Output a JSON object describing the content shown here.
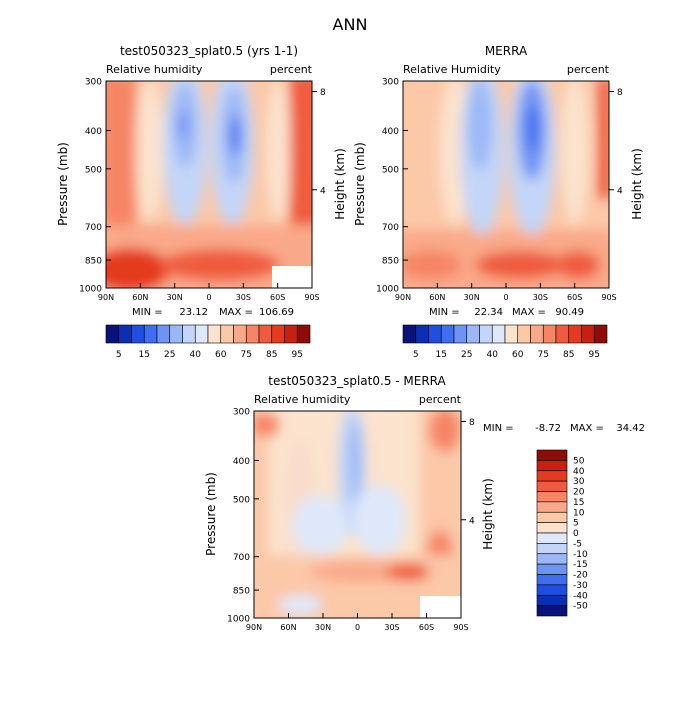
{
  "main_title": "ANN",
  "chart_data": [
    {
      "type": "heatmap",
      "id": "p1",
      "title": "test050323_splat0.5 (yrs 1-1)",
      "left_label": "Relative humidity",
      "right_label": "percent",
      "ylabel": "Pressure (mb)",
      "ylabel_right": "Height (km)",
      "y_ticks": [
        "300",
        "400",
        "500",
        "700",
        "850",
        "1000"
      ],
      "y_tick_values": [
        300,
        400,
        500,
        700,
        850,
        1000
      ],
      "height_ticks": [
        "8",
        "4"
      ],
      "height_tick_values": [
        8,
        4
      ],
      "x_ticks": [
        "90N",
        "60N",
        "30N",
        "0",
        "30S",
        "60S",
        "90S"
      ],
      "x_tick_values": [
        90,
        60,
        30,
        0,
        -30,
        -60,
        -90
      ],
      "min_label": "MIN =",
      "min_value": "23.12",
      "max_label": "MAX =",
      "max_value": "106.69",
      "colorbar_labels": [
        "5",
        "15",
        "25",
        "40",
        "60",
        "75",
        "85",
        "95"
      ],
      "colorbar_colors": [
        "#08127a",
        "#0a2fb0",
        "#1f4ee0",
        "#3f6ef0",
        "#6f93f3",
        "#9bb7f6",
        "#c3d5f8",
        "#dfe8fa",
        "#fbe3cd",
        "#fbc8a8",
        "#f9a989",
        "#f58565",
        "#ef5c3d",
        "#e43a1e",
        "#c62010",
        "#8e0c05"
      ]
    },
    {
      "type": "heatmap",
      "id": "p2",
      "title": "MERRA",
      "left_label": "Relative Humidity",
      "right_label": "percent",
      "ylabel": "Pressure (mb)",
      "ylabel_right": "Height (km)",
      "y_ticks": [
        "300",
        "400",
        "500",
        "700",
        "850",
        "1000"
      ],
      "y_tick_values": [
        300,
        400,
        500,
        700,
        850,
        1000
      ],
      "height_ticks": [
        "8",
        "4"
      ],
      "height_tick_values": [
        8,
        4
      ],
      "x_ticks": [
        "90N",
        "60N",
        "30N",
        "0",
        "30S",
        "60S",
        "90S"
      ],
      "x_tick_values": [
        90,
        60,
        30,
        0,
        -30,
        -60,
        -90
      ],
      "min_label": "MIN =",
      "min_value": "22.34",
      "max_label": "MAX =",
      "max_value": "90.49",
      "colorbar_labels": [
        "5",
        "15",
        "25",
        "40",
        "60",
        "75",
        "85",
        "95"
      ],
      "colorbar_colors": [
        "#08127a",
        "#0a2fb0",
        "#1f4ee0",
        "#3f6ef0",
        "#6f93f3",
        "#9bb7f6",
        "#c3d5f8",
        "#dfe8fa",
        "#fbe3cd",
        "#fbc8a8",
        "#f9a989",
        "#f58565",
        "#ef5c3d",
        "#e43a1e",
        "#c62010",
        "#8e0c05"
      ]
    },
    {
      "type": "heatmap",
      "id": "p3",
      "title": "test050323_splat0.5 - MERRA",
      "left_label": "Relative humidity",
      "right_label": "percent",
      "ylabel": "Pressure (mb)",
      "ylabel_right": "Height (km)",
      "y_ticks": [
        "300",
        "400",
        "500",
        "700",
        "850",
        "1000"
      ],
      "y_tick_values": [
        300,
        400,
        500,
        700,
        850,
        1000
      ],
      "height_ticks": [
        "8",
        "4"
      ],
      "height_tick_values": [
        8,
        4
      ],
      "x_ticks": [
        "90N",
        "60N",
        "30N",
        "0",
        "30S",
        "60S",
        "90S"
      ],
      "x_tick_values": [
        90,
        60,
        30,
        0,
        -30,
        -60,
        -90
      ],
      "min_label": "MIN =",
      "min_value": "-8.72",
      "max_label": "MAX =",
      "max_value": "34.42",
      "colorbar_labels": [
        "50",
        "40",
        "30",
        "20",
        "15",
        "10",
        "5",
        "0",
        "-5",
        "-10",
        "-15",
        "-20",
        "-30",
        "-40",
        "-50"
      ],
      "colorbar_colors": [
        "#8e0c05",
        "#c62010",
        "#e43a1e",
        "#ef5c3d",
        "#f58565",
        "#f9a989",
        "#fbc8a8",
        "#fbe3cd",
        "#dfe8fa",
        "#c3d5f8",
        "#9bb7f6",
        "#6f93f3",
        "#3f6ef0",
        "#1f4ee0",
        "#0a2fb0",
        "#08127a"
      ]
    }
  ]
}
